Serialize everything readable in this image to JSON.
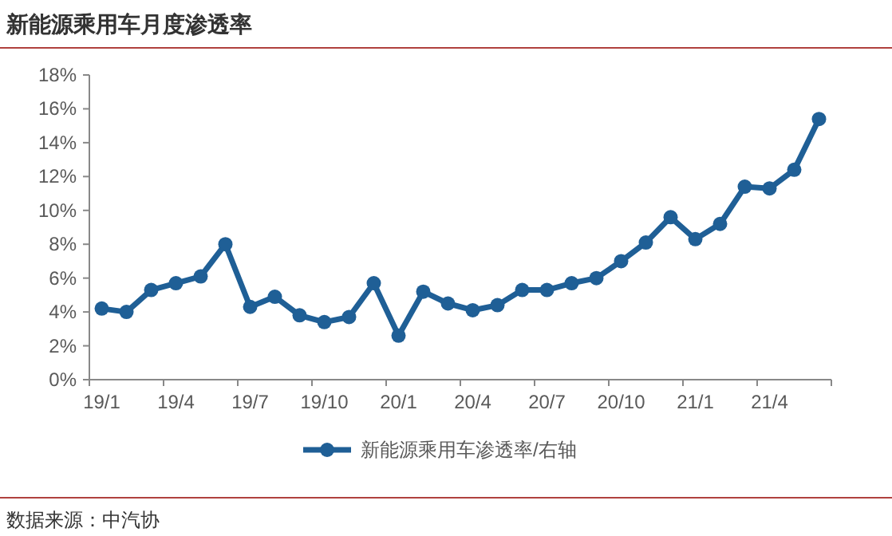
{
  "chart_data": {
    "type": "line",
    "title": "新能源乘用车月度渗透率",
    "categories": [
      "19/1",
      null,
      null,
      "19/4",
      null,
      null,
      "19/7",
      null,
      null,
      "19/10",
      null,
      null,
      "20/1",
      null,
      null,
      "20/4",
      null,
      null,
      "20/7",
      null,
      null,
      "20/10",
      null,
      null,
      "21/1",
      null,
      null,
      "21/4",
      null,
      null
    ],
    "series": [
      {
        "name": "新能源乘用车渗透率/右轴",
        "color": "#1f5f96",
        "values": [
          4.2,
          4.0,
          5.3,
          5.7,
          6.1,
          8.0,
          4.3,
          4.9,
          3.8,
          3.4,
          3.7,
          5.7,
          2.6,
          5.2,
          4.5,
          4.1,
          4.4,
          5.3,
          5.3,
          5.7,
          6.0,
          7.0,
          8.1,
          9.6,
          8.3,
          9.2,
          11.4,
          11.3,
          12.4,
          15.4
        ]
      }
    ],
    "ylim": [
      0,
      18
    ],
    "yticks": [
      {
        "value": 0,
        "label": "0%"
      },
      {
        "value": 2,
        "label": "2%"
      },
      {
        "value": 4,
        "label": "4%"
      },
      {
        "value": 6,
        "label": "6%"
      },
      {
        "value": 8,
        "label": "8%"
      },
      {
        "value": 10,
        "label": "10%"
      },
      {
        "value": 12,
        "label": "12%"
      },
      {
        "value": 14,
        "label": "14%"
      },
      {
        "value": 16,
        "label": "16%"
      },
      {
        "value": 18,
        "label": "18%"
      }
    ],
    "grid": false,
    "legend": "bottom",
    "marker": "circle",
    "line_style": "solid",
    "annotations": [
      "数据来源：中汽协"
    ]
  }
}
